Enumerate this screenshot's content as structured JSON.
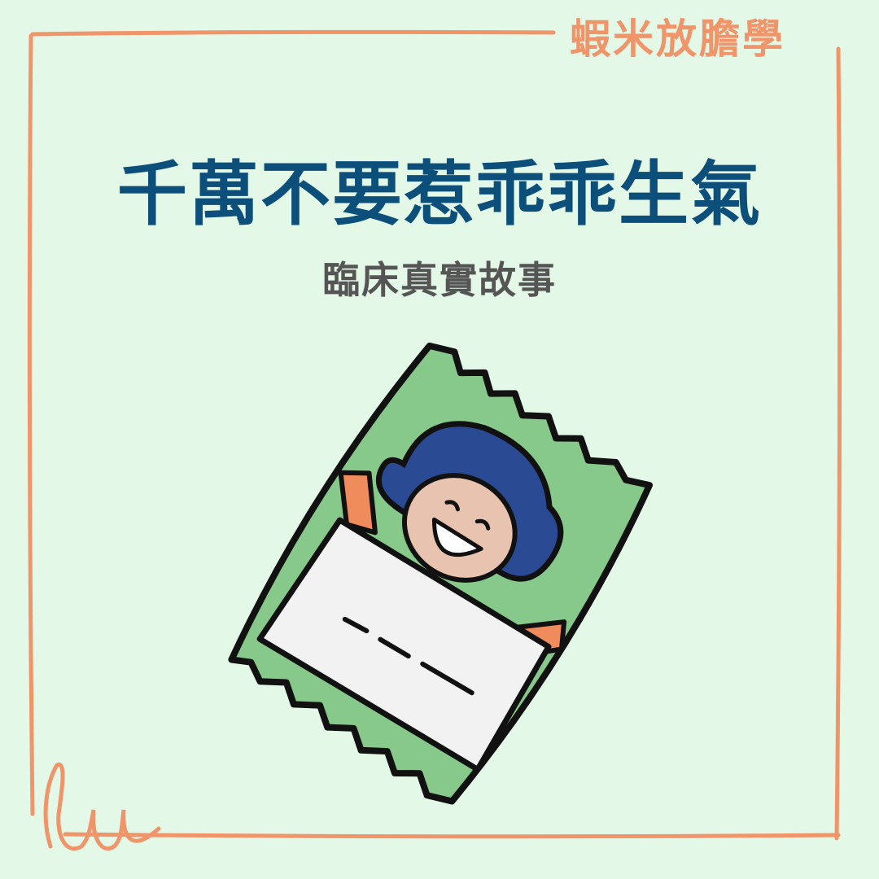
{
  "brand": {
    "name": "蝦米放膽學"
  },
  "header": {
    "title": "千萬不要惹乖乖生氣",
    "subtitle": "臨床真實故事"
  },
  "illustration": {
    "description_icon": "snack-bag-mascot-icon",
    "bag_color": "#86c98a",
    "hair_color": "#2a4a94",
    "face_color": "#e8c4b0",
    "arm_color": "#f08c5c",
    "sheet_color": "#f2f2f2"
  },
  "colors": {
    "background": "#e4f8e8",
    "frame": "#f0946a",
    "title": "#0b4f7a",
    "subtitle": "#555555"
  }
}
